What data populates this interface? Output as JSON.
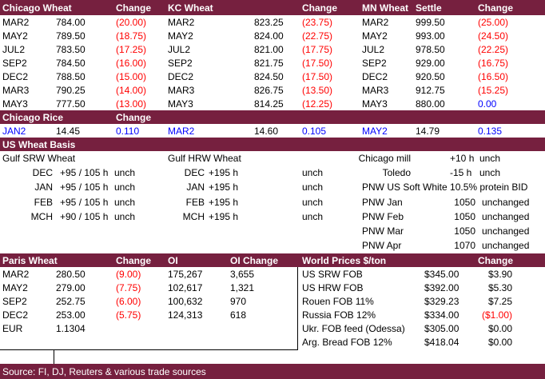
{
  "futures": {
    "headers": [
      "Chicago Wheat",
      "Change",
      "KC Wheat",
      "Change",
      "MN Wheat",
      "Settle",
      "Change"
    ],
    "rows": [
      [
        "MAR2",
        "784.00",
        "(20.00)",
        "MAR2",
        "823.25",
        "(23.75)",
        "MAR2",
        "999.50",
        "(25.00)"
      ],
      [
        "MAY2",
        "789.50",
        "(18.75)",
        "MAY2",
        "824.00",
        "(22.75)",
        "MAY2",
        "993.00",
        "(24.50)"
      ],
      [
        "JUL2",
        "783.50",
        "(17.25)",
        "JUL2",
        "821.00",
        "(17.75)",
        "JUL2",
        "978.50",
        "(22.25)"
      ],
      [
        "SEP2",
        "784.50",
        "(16.00)",
        "SEP2",
        "821.75",
        "(17.50)",
        "SEP2",
        "929.00",
        "(16.75)"
      ],
      [
        "DEC2",
        "788.50",
        "(15.00)",
        "DEC2",
        "824.50",
        "(17.50)",
        "DEC2",
        "920.50",
        "(16.50)"
      ],
      [
        "MAR3",
        "790.25",
        "(14.00)",
        "MAR3",
        "826.75",
        "(13.50)",
        "MAR3",
        "912.75",
        "(15.25)"
      ],
      [
        "MAY3",
        "777.50",
        "(13.00)",
        "MAY3",
        "814.25",
        "(12.25)",
        "MAY3",
        "880.00",
        "0.00"
      ]
    ]
  },
  "rice": {
    "headers": [
      "Chicago Rice",
      "Change"
    ],
    "row": [
      "JAN2",
      "14.45",
      "0.110",
      "MAR2",
      "14.60",
      "0.105",
      "MAY2",
      "14.79",
      "0.135"
    ]
  },
  "basis": {
    "title": "US Wheat Basis",
    "gulf_srw": {
      "title": "Gulf SRW Wheat",
      "rows": [
        [
          "DEC",
          "+95 / 105 h",
          "unch"
        ],
        [
          "JAN",
          "+95 / 105 h",
          "unch"
        ],
        [
          "FEB",
          "+95 / 105 h",
          "unch"
        ],
        [
          "MCH",
          "+90 / 105 h",
          "unch"
        ]
      ]
    },
    "gulf_hrw": {
      "title": "Gulf HRW Wheat",
      "rows": [
        [
          "DEC",
          "+195 h",
          "unch"
        ],
        [
          "JAN",
          "+195 h",
          "unch"
        ],
        [
          "FEB",
          "+195 h",
          "unch"
        ],
        [
          "MCH",
          "+195 h",
          "unch"
        ]
      ]
    },
    "interior": [
      [
        "Chicago mill",
        "+10 h",
        "unch"
      ],
      [
        "Toledo",
        "-15 h",
        "unch"
      ]
    ],
    "pnw": {
      "title": "PNW US Soft White 10.5% protein BID",
      "rows": [
        [
          "PNW Jan",
          "1050",
          "unchanged"
        ],
        [
          "PNW Feb",
          "1050",
          "unchanged"
        ],
        [
          "PNW Mar",
          "1050",
          "unchanged"
        ],
        [
          "PNW Apr",
          "1070",
          "unchanged"
        ]
      ]
    }
  },
  "paris": {
    "headers": [
      "Paris Wheat",
      "Change",
      "OI",
      "OI Change"
    ],
    "rows": [
      [
        "MAR2",
        "280.50",
        "(9.00)",
        "175,267",
        "3,655"
      ],
      [
        "MAY2",
        "279.00",
        "(7.75)",
        "102,617",
        "1,321"
      ],
      [
        "SEP2",
        "252.75",
        "(6.00)",
        "100,632",
        "970"
      ],
      [
        "DEC2",
        "253.00",
        "(5.75)",
        "124,313",
        "618"
      ]
    ],
    "eur": [
      "EUR",
      "1.1304"
    ]
  },
  "world": {
    "headers": [
      "World Prices $/ton",
      "Change"
    ],
    "rows": [
      [
        "US SRW FOB",
        "$345.00",
        "$3.90"
      ],
      [
        "US HRW FOB",
        "$392.00",
        "$5.30"
      ],
      [
        "Rouen FOB 11%",
        "$329.23",
        "$7.25"
      ],
      [
        "Russia FOB 12%",
        "$334.00",
        "($1.00)"
      ],
      [
        "Ukr. FOB feed (Odessa)",
        "$305.00",
        "$0.00"
      ],
      [
        "Arg. Bread FOB 12%",
        "$418.04",
        "$0.00"
      ]
    ]
  },
  "footer": "Source: FI, DJ, Reuters & various trade sources"
}
